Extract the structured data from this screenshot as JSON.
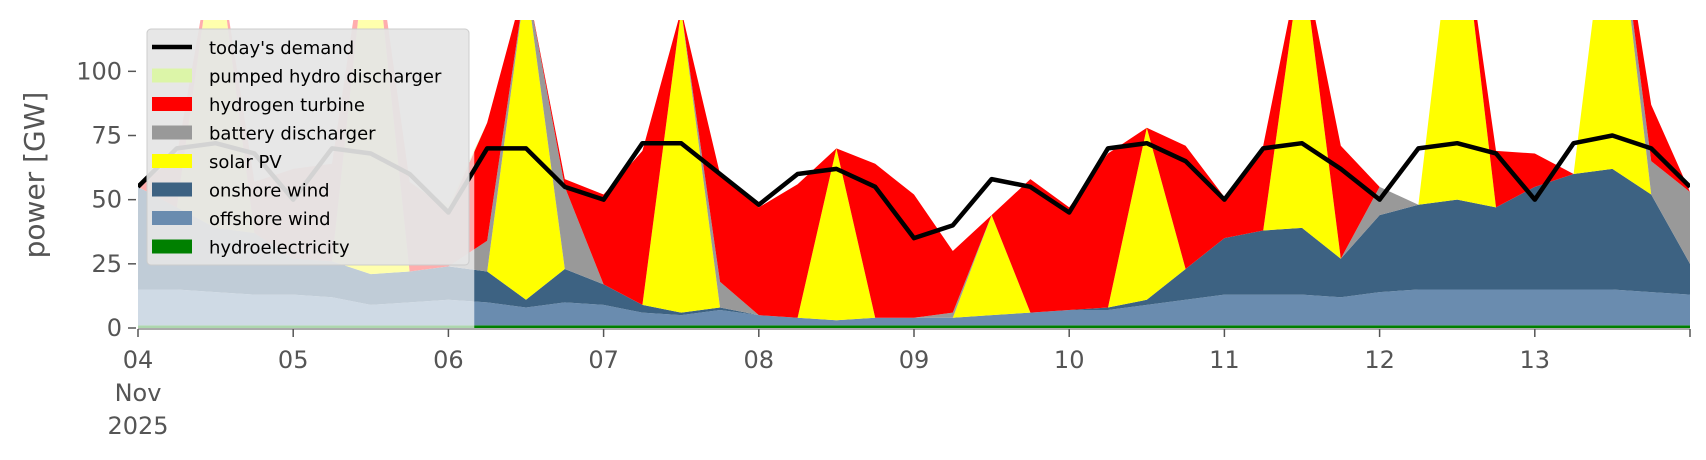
{
  "chart_data": {
    "type": "area",
    "ylabel": "power [GW]",
    "ylim": [
      0,
      120
    ],
    "yticks": [
      0,
      25,
      50,
      75,
      100
    ],
    "xlim": [
      "2025-11-04",
      "2025-11-14"
    ],
    "xtick_labels": [
      "04",
      "05",
      "06",
      "07",
      "08",
      "09",
      "10",
      "11",
      "12",
      "13"
    ],
    "x_date_sublabel": [
      "Nov",
      "2025"
    ],
    "grid": false,
    "legend_position": "top-left",
    "x": [
      "2025-11-04 00:00",
      "2025-11-04 06:00",
      "2025-11-04 12:00",
      "2025-11-04 18:00",
      "2025-11-05 00:00",
      "2025-11-05 06:00",
      "2025-11-05 12:00",
      "2025-11-05 18:00",
      "2025-11-06 00:00",
      "2025-11-06 06:00",
      "2025-11-06 12:00",
      "2025-11-06 18:00",
      "2025-11-07 00:00",
      "2025-11-07 06:00",
      "2025-11-07 12:00",
      "2025-11-07 18:00",
      "2025-11-08 00:00",
      "2025-11-08 06:00",
      "2025-11-08 12:00",
      "2025-11-08 18:00",
      "2025-11-09 00:00",
      "2025-11-09 06:00",
      "2025-11-09 12:00",
      "2025-11-09 18:00",
      "2025-11-10 00:00",
      "2025-11-10 06:00",
      "2025-11-10 12:00",
      "2025-11-10 18:00",
      "2025-11-11 00:00",
      "2025-11-11 06:00",
      "2025-11-11 12:00",
      "2025-11-11 18:00",
      "2025-11-12 00:00",
      "2025-11-12 06:00",
      "2025-11-12 12:00",
      "2025-11-12 18:00",
      "2025-11-13 00:00",
      "2025-11-13 06:00",
      "2025-11-13 12:00",
      "2025-11-13 18:00",
      "2025-11-14 00:00"
    ],
    "series": [
      {
        "name": "hydroelectricity",
        "color": "#008000",
        "values": [
          1,
          1,
          1,
          1,
          1,
          1,
          1,
          1,
          1,
          1,
          1,
          1,
          1,
          1,
          1,
          1,
          1,
          1,
          1,
          1,
          1,
          1,
          1,
          1,
          1,
          1,
          1,
          1,
          1,
          1,
          1,
          1,
          1,
          1,
          1,
          1,
          1,
          1,
          1,
          1,
          1
        ]
      },
      {
        "name": "offshore wind",
        "color": "#6a8caf",
        "values": [
          14,
          14,
          13,
          12,
          12,
          11,
          8,
          9,
          10,
          9,
          7,
          9,
          8,
          5,
          4,
          6,
          4,
          3,
          2,
          3,
          3,
          3,
          4,
          5,
          6,
          6,
          8,
          10,
          12,
          12,
          12,
          11,
          13,
          14,
          14,
          14,
          14,
          14,
          14,
          13,
          12
        ]
      },
      {
        "name": "onshore wind",
        "color": "#3d6282",
        "values": [
          40,
          32,
          25,
          24,
          14,
          14,
          12,
          12,
          13,
          12,
          3,
          13,
          8,
          3,
          1,
          1,
          0,
          0,
          0,
          0,
          0,
          0,
          0,
          0,
          0,
          1,
          2,
          12,
          22,
          25,
          26,
          15,
          30,
          33,
          35,
          32,
          40,
          45,
          47,
          38,
          12
        ]
      },
      {
        "name": "solar PV",
        "color": "#ffff00",
        "values": [
          0,
          0,
          115,
          0,
          0,
          0,
          145,
          0,
          0,
          0,
          125,
          0,
          0,
          0,
          118,
          0,
          0,
          0,
          67,
          0,
          0,
          0,
          39,
          0,
          0,
          0,
          67,
          0,
          0,
          0,
          107,
          0,
          0,
          0,
          125,
          0,
          0,
          0,
          120,
          0,
          0
        ]
      },
      {
        "name": "battery discharger",
        "color": "#999999",
        "values": [
          0,
          0,
          0,
          0,
          0,
          0,
          0,
          0,
          0,
          12,
          0,
          32,
          0,
          0,
          0,
          10,
          0,
          0,
          0,
          0,
          0,
          2,
          0,
          0,
          0,
          0,
          0,
          0,
          0,
          0,
          0,
          0,
          11,
          0,
          0,
          0,
          0,
          0,
          0,
          13,
          28
        ]
      },
      {
        "name": "hydrogen turbine",
        "color": "#ff0000",
        "values": [
          0,
          20,
          0,
          20,
          35,
          38,
          0,
          35,
          22,
          46,
          0,
          3,
          35,
          60,
          0,
          42,
          42,
          52,
          0,
          60,
          48,
          24,
          0,
          52,
          40,
          60,
          0,
          48,
          16,
          33,
          0,
          44,
          0,
          0,
          0,
          22,
          13,
          0,
          0,
          22,
          0
        ]
      },
      {
        "name": "pumped hydro discharger",
        "color": "#dcf5a8",
        "values": [
          0,
          0,
          0,
          0,
          0,
          0,
          0,
          0,
          2,
          0,
          0,
          0,
          0,
          0,
          0,
          0,
          0,
          0,
          0,
          0,
          0,
          0,
          0,
          0,
          0,
          0,
          0,
          0,
          0,
          0,
          0,
          0,
          0,
          0,
          0,
          0,
          0,
          0,
          0,
          0,
          0
        ]
      }
    ],
    "demand": {
      "name": "today's demand",
      "color": "#000000",
      "values": [
        55,
        70,
        72,
        68,
        50,
        70,
        68,
        60,
        45,
        70,
        70,
        55,
        50,
        72,
        72,
        60,
        48,
        60,
        62,
        55,
        35,
        40,
        58,
        55,
        45,
        70,
        72,
        65,
        50,
        70,
        72,
        62,
        50,
        70,
        72,
        68,
        50,
        72,
        75,
        70,
        55
      ]
    },
    "shaded_until": "2025-11-06 04:00"
  },
  "legend_order": [
    "today's demand",
    "pumped hydro discharger",
    "hydrogen turbine",
    "battery discharger",
    "solar PV",
    "onshore wind",
    "offshore wind",
    "hydroelectricity"
  ]
}
